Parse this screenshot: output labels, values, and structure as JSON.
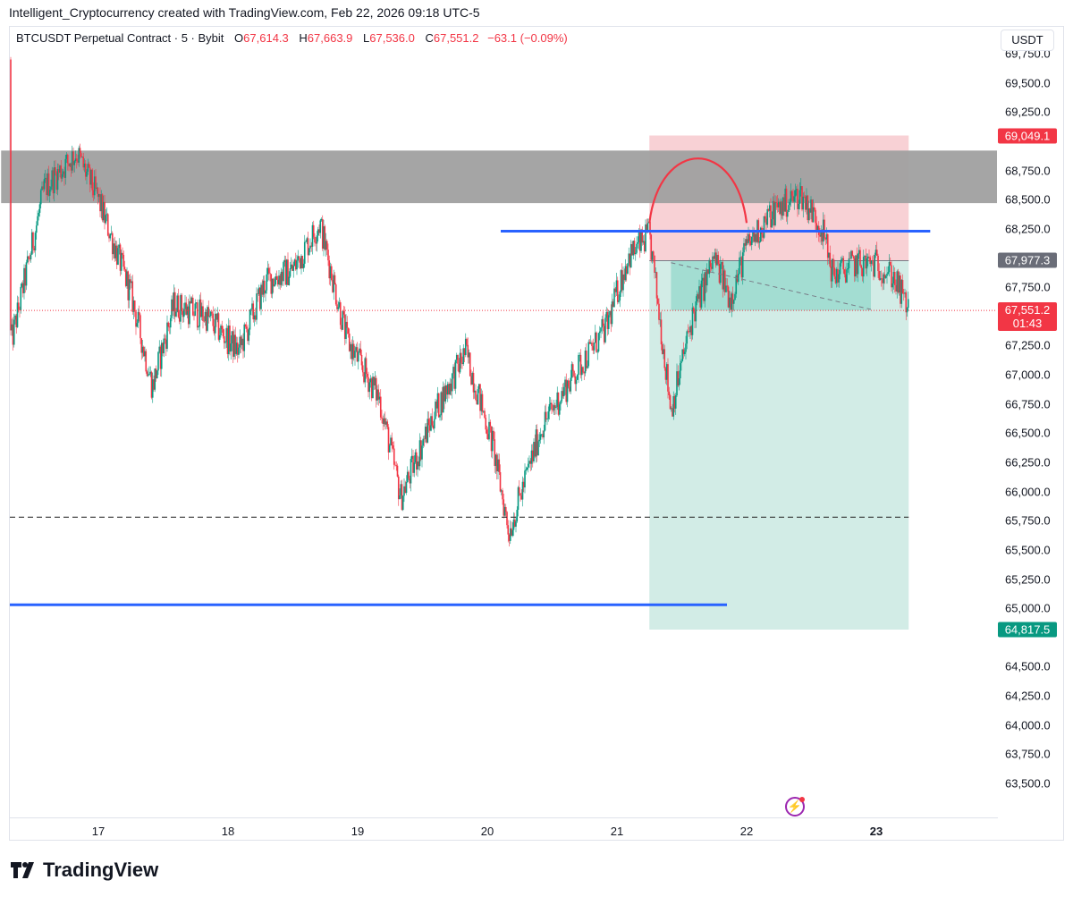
{
  "caption": "Intelligent_Cryptocurrency created with TradingView.com, Feb 22, 2026 09:18 UTC-5",
  "legend": {
    "symbol": "BTCUSDT Perpetual Contract · 5 · Bybit",
    "o_label": "O",
    "o_value": "67,614.3",
    "h_label": "H",
    "h_value": "67,663.9",
    "l_label": "L",
    "l_value": "67,536.0",
    "c_label": "C",
    "c_value": "67,551.2",
    "change": "−63.1 (−0.09%)"
  },
  "currency": "USDT",
  "price_ticks": [
    "69,750.0",
    "69,500.0",
    "69,250.0",
    "68,750.0",
    "68,500.0",
    "68,250.0",
    "67,750.0",
    "67,250.0",
    "67,000.0",
    "66,750.0",
    "66,500.0",
    "66,250.0",
    "66,000.0",
    "65,750.0",
    "65,500.0",
    "65,250.0",
    "65,000.0",
    "64,500.0",
    "64,250.0",
    "64,000.0",
    "63,750.0",
    "63,500.0"
  ],
  "tags": {
    "stop": "69,049.1",
    "entry": "67,977.3",
    "last_price": "67,551.2",
    "countdown": "01:43",
    "target": "64,817.5"
  },
  "time_labels": [
    {
      "text": "17",
      "bold": false
    },
    {
      "text": "18",
      "bold": false
    },
    {
      "text": "19",
      "bold": false
    },
    {
      "text": "20",
      "bold": false
    },
    {
      "text": "21",
      "bold": false
    },
    {
      "text": "22",
      "bold": false
    },
    {
      "text": "23",
      "bold": true
    }
  ],
  "logo_text": "TradingView",
  "colors": {
    "up": "#089981",
    "down": "#f23645",
    "blue_line": "#2962ff",
    "zone": "#a0a0a0",
    "stop_zone": "#f7c9ce",
    "target_zone": "#d2ece6",
    "arc": "#f23645"
  },
  "chart_data": {
    "type": "candlestick",
    "symbol": "BTCUSDT",
    "timeframe": "5",
    "y_range": [
      63350,
      69950
    ],
    "x_labels": [
      "17",
      "18",
      "19",
      "20",
      "21",
      "22",
      "23"
    ],
    "path_points": [
      [
        "16 00:00",
        69700
      ],
      [
        "16 03:00",
        68200
      ],
      [
        "16 08:00",
        67300
      ],
      [
        "16 14:00",
        68600
      ],
      [
        "16 20:00",
        68900
      ],
      [
        "17 00:00",
        68500
      ],
      [
        "17 06:00",
        67700
      ],
      [
        "17 10:00",
        66900
      ],
      [
        "17 14:00",
        67600
      ],
      [
        "17 20:00",
        67500
      ],
      [
        "18 02:00",
        67200
      ],
      [
        "18 07:00",
        67800
      ],
      [
        "18 12:00",
        67900
      ],
      [
        "18 17:00",
        68300
      ],
      [
        "18 22:00",
        67300
      ],
      [
        "19 04:00",
        66800
      ],
      [
        "19 08:00",
        65950
      ],
      [
        "19 14:00",
        66650
      ],
      [
        "19 20:00",
        67200
      ],
      [
        "20 01:00",
        66400
      ],
      [
        "20 04:00",
        65650
      ],
      [
        "20 10:00",
        66550
      ],
      [
        "20 16:00",
        67000
      ],
      [
        "20 22:00",
        67400
      ],
      [
        "21 02:00",
        68000
      ],
      [
        "21 06:00",
        68200
      ],
      [
        "21 10:00",
        66700
      ],
      [
        "21 14:00",
        67500
      ],
      [
        "21 18:00",
        68000
      ],
      [
        "21 21:00",
        67650
      ],
      [
        "22 00:00",
        68100
      ],
      [
        "22 05:00",
        68400
      ],
      [
        "22 10:00",
        68550
      ],
      [
        "22 14:00",
        68250
      ],
      [
        "22 16:00",
        67850
      ],
      [
        "22 20:00",
        67950
      ],
      [
        "23 00:00",
        67950
      ],
      [
        "23 03:00",
        67850
      ],
      [
        "23 06:00",
        67551
      ]
    ],
    "annotations": {
      "resistance_zone": [
        68470,
        68920
      ],
      "blue_line_upper": 68230,
      "blue_line_lower": 65030,
      "dashed_level": 65780,
      "short_position": {
        "entry": 67977.3,
        "stop": 69049.1,
        "target": 64817.5
      },
      "last_price": 67551.2
    }
  }
}
